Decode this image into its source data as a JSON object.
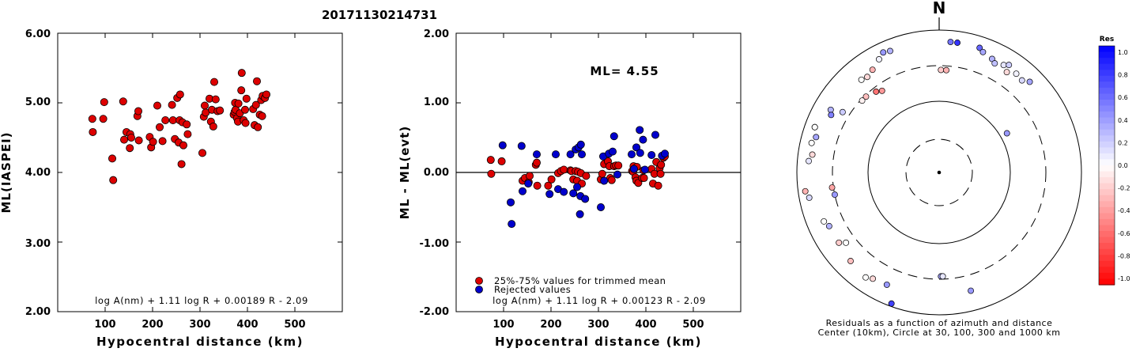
{
  "title": "20171130214731",
  "chart_data": [
    {
      "type": "scatter",
      "title": "",
      "xlabel": "Hypocentral distance (km)",
      "ylabel": "ML(IASPEI)",
      "xlim": [
        0,
        600
      ],
      "ylim": [
        2.0,
        6.0
      ],
      "xticks": [
        "100",
        "200",
        "300",
        "400",
        "500"
      ],
      "yticks": [
        "2.00",
        "3.00",
        "4.00",
        "5.00",
        "6.00"
      ],
      "formula": "log A(nm) + 1.11 log R + 0.00189 R - 2.09",
      "marker_color": "#dd0000",
      "points": [
        [
          73,
          4.77
        ],
        [
          74,
          4.58
        ],
        [
          96,
          4.77
        ],
        [
          98,
          5.01
        ],
        [
          115,
          4.2
        ],
        [
          117,
          3.89
        ],
        [
          138,
          5.02
        ],
        [
          140,
          4.47
        ],
        [
          145,
          4.58
        ],
        [
          152,
          4.35
        ],
        [
          153,
          4.55
        ],
        [
          155,
          4.5
        ],
        [
          168,
          4.81
        ],
        [
          170,
          4.88
        ],
        [
          171,
          4.46
        ],
        [
          194,
          4.51
        ],
        [
          197,
          4.36
        ],
        [
          201,
          4.44
        ],
        [
          210,
          4.96
        ],
        [
          215,
          4.65
        ],
        [
          221,
          4.45
        ],
        [
          227,
          4.75
        ],
        [
          241,
          4.97
        ],
        [
          243,
          4.75
        ],
        [
          247,
          4.48
        ],
        [
          252,
          5.07
        ],
        [
          255,
          4.43
        ],
        [
          257,
          4.75
        ],
        [
          258,
          5.12
        ],
        [
          261,
          4.12
        ],
        [
          263,
          4.72
        ],
        [
          265,
          4.39
        ],
        [
          272,
          4.69
        ],
        [
          274,
          4.55
        ],
        [
          305,
          4.28
        ],
        [
          308,
          4.8
        ],
        [
          310,
          4.96
        ],
        [
          312,
          4.86
        ],
        [
          320,
          5.06
        ],
        [
          323,
          4.73
        ],
        [
          325,
          4.9
        ],
        [
          328,
          4.66
        ],
        [
          330,
          5.3
        ],
        [
          333,
          5.05
        ],
        [
          337,
          4.88
        ],
        [
          342,
          4.89
        ],
        [
          371,
          4.83
        ],
        [
          373,
          4.87
        ],
        [
          374,
          5.0
        ],
        [
          375,
          4.9
        ],
        [
          378,
          4.78
        ],
        [
          380,
          4.73
        ],
        [
          381,
          4.99
        ],
        [
          384,
          4.85
        ],
        [
          387,
          5.18
        ],
        [
          388,
          5.43
        ],
        [
          392,
          4.75
        ],
        [
          395,
          4.9
        ],
        [
          396,
          4.71
        ],
        [
          398,
          5.06
        ],
        [
          412,
          4.91
        ],
        [
          415,
          4.68
        ],
        [
          418,
          4.97
        ],
        [
          420,
          5.31
        ],
        [
          422,
          4.65
        ],
        [
          426,
          4.83
        ],
        [
          429,
          5.04
        ],
        [
          431,
          4.81
        ],
        [
          432,
          5.1
        ],
        [
          437,
          5.07
        ],
        [
          440,
          5.12
        ]
      ]
    },
    {
      "type": "scatter",
      "title": "",
      "xlabel": "Hypocentral distance (km)",
      "ylabel": "ML - ML(evt)",
      "xlim": [
        0,
        600
      ],
      "ylim": [
        -2.0,
        2.0
      ],
      "xticks": [
        "100",
        "200",
        "300",
        "400",
        "500"
      ],
      "yticks": [
        "-2.00",
        "-1.00",
        "0.00",
        "1.00",
        "2.00"
      ],
      "annotation": "ML= 4.55",
      "legend": [
        "25%-75% values for trimmed mean",
        "Rejected values"
      ],
      "legend_colors": [
        "#dd0000",
        "#0000cc"
      ],
      "formula": "log A(nm) + 1.11 log R + 0.00123 R - 2.09",
      "series": [
        {
          "name": "25%-75% values for trimmed mean",
          "color": "#dd0000",
          "points": [
            [
              73,
              0.18
            ],
            [
              74,
              -0.02
            ],
            [
              96,
              0.16
            ],
            [
              140,
              -0.12
            ],
            [
              145,
              -0.08
            ],
            [
              153,
              -0.14
            ],
            [
              155,
              -0.05
            ],
            [
              168,
              0.11
            ],
            [
              170,
              0.14
            ],
            [
              171,
              -0.19
            ],
            [
              194,
              -0.19
            ],
            [
              201,
              -0.1
            ],
            [
              215,
              -0.01
            ],
            [
              221,
              0.02
            ],
            [
              227,
              0.04
            ],
            [
              241,
              0.03
            ],
            [
              243,
              0.02
            ],
            [
              247,
              -0.1
            ],
            [
              252,
              0.02
            ],
            [
              255,
              -0.12
            ],
            [
              257,
              0.01
            ],
            [
              263,
              -0.01
            ],
            [
              265,
              -0.16
            ],
            [
              274,
              -0.05
            ],
            [
              305,
              -0.1
            ],
            [
              308,
              -0.02
            ],
            [
              312,
              0.12
            ],
            [
              320,
              0.16
            ],
            [
              323,
              0.09
            ],
            [
              325,
              -0.08
            ],
            [
              328,
              -0.11
            ],
            [
              333,
              0.09
            ],
            [
              337,
              0.1
            ],
            [
              342,
              0.1
            ],
            [
              371,
              0.02
            ],
            [
              373,
              0.01
            ],
            [
              374,
              0.09
            ],
            [
              375,
              0.05
            ],
            [
              378,
              -0.07
            ],
            [
              380,
              -0.12
            ],
            [
              381,
              0.08
            ],
            [
              384,
              -0.15
            ],
            [
              392,
              -0.08
            ],
            [
              395,
              0.03
            ],
            [
              396,
              -0.08
            ],
            [
              412,
              0.05
            ],
            [
              415,
              -0.16
            ],
            [
              418,
              -0.02
            ],
            [
              422,
              0.15
            ],
            [
              426,
              -0.19
            ],
            [
              429,
              0.06
            ],
            [
              431,
              -0.02
            ],
            [
              432,
              0.11
            ],
            [
              437,
              0.21
            ],
            [
              440,
              0.23
            ]
          ]
        },
        {
          "name": "Rejected values",
          "color": "#0000cc",
          "points": [
            [
              98,
              0.39
            ],
            [
              115,
              -0.43
            ],
            [
              117,
              -0.74
            ],
            [
              138,
              0.38
            ],
            [
              140,
              -0.27
            ],
            [
              152,
              -0.16
            ],
            [
              170,
              0.26
            ],
            [
              197,
              -0.31
            ],
            [
              210,
              0.26
            ],
            [
              215,
              -0.24
            ],
            [
              227,
              -0.28
            ],
            [
              241,
              0.26
            ],
            [
              247,
              -0.3
            ],
            [
              252,
              0.33
            ],
            [
              255,
              -0.21
            ],
            [
              258,
              0.36
            ],
            [
              261,
              -0.6
            ],
            [
              262,
              -0.34
            ],
            [
              263,
              0.4
            ],
            [
              265,
              0.26
            ],
            [
              272,
              -0.38
            ],
            [
              305,
              -0.5
            ],
            [
              310,
              0.23
            ],
            [
              312,
              -0.12
            ],
            [
              322,
              0.27
            ],
            [
              330,
              0.3
            ],
            [
              333,
              0.52
            ],
            [
              340,
              -0.03
            ],
            [
              370,
              0.26
            ],
            [
              375,
              0.05
            ],
            [
              380,
              0.36
            ],
            [
              387,
              0.61
            ],
            [
              388,
              0.28
            ],
            [
              394,
              0.47
            ],
            [
              398,
              0.04
            ],
            [
              412,
              0.25
            ],
            [
              420,
              0.54
            ],
            [
              434,
              0.24
            ],
            [
              440,
              0.27
            ]
          ]
        }
      ]
    },
    {
      "type": "scatter",
      "title": "N",
      "subtype": "polar",
      "caption": [
        "Residuals as a function of azimuth and distance",
        "Center (10km), Circle at 30, 100, 300 and 1000 km"
      ],
      "colorbar": {
        "title": "Res",
        "ticks": [
          "1.0",
          "0.8",
          "0.6",
          "0.4",
          "0.2",
          "0.0",
          "-0.2",
          "-0.4",
          "-0.6",
          "-0.8",
          "-1.0"
        ]
      },
      "points": [
        {
          "az": 5,
          "r": 0.92,
          "res": 0.55
        },
        {
          "az": 8,
          "r": 0.92,
          "res": 0.8
        },
        {
          "az": 18,
          "r": 0.92,
          "res": 0.6
        },
        {
          "az": 20,
          "r": 0.9,
          "res": 0.35
        },
        {
          "az": 25,
          "r": 0.88,
          "res": 0.3
        },
        {
          "az": 27,
          "r": 0.86,
          "res": 0.25
        },
        {
          "az": 31,
          "r": 0.88,
          "res": 0.1
        },
        {
          "az": 34,
          "r": 0.85,
          "res": -0.15
        },
        {
          "az": 33,
          "r": 0.9,
          "res": 0.2
        },
        {
          "az": 38,
          "r": 0.88,
          "res": 0.05
        },
        {
          "az": 42,
          "r": 0.87,
          "res": 0.15
        },
        {
          "az": 45,
          "r": 0.9,
          "res": 0.35
        },
        {
          "az": 60,
          "r": 0.55,
          "res": 0.4
        },
        {
          "az": 1,
          "r": 0.72,
          "res": -0.2
        },
        {
          "az": 4,
          "r": 0.72,
          "res": -0.3
        },
        {
          "az": 335,
          "r": 0.93,
          "res": 0.4
        },
        {
          "az": 338,
          "r": 0.92,
          "res": 0.3
        },
        {
          "az": 332,
          "r": 0.9,
          "res": 0.05
        },
        {
          "az": 327,
          "r": 0.86,
          "res": -0.3
        },
        {
          "az": 323,
          "r": 0.84,
          "res": -0.15
        },
        {
          "az": 320,
          "r": 0.85,
          "res": 0.0
        },
        {
          "az": 316,
          "r": 0.74,
          "res": -0.25
        },
        {
          "az": 313,
          "r": 0.74,
          "res": -0.05
        },
        {
          "az": 322,
          "r": 0.72,
          "res": -0.55
        },
        {
          "az": 325,
          "r": 0.7,
          "res": -0.4
        },
        {
          "az": 300,
          "r": 0.88,
          "res": 0.3
        },
        {
          "az": 298,
          "r": 0.86,
          "res": 0.5
        },
        {
          "az": 302,
          "r": 0.8,
          "res": 0.2
        },
        {
          "az": 290,
          "r": 0.93,
          "res": 0.25
        },
        {
          "az": 286,
          "r": 0.9,
          "res": 0.35
        },
        {
          "az": 290,
          "r": 0.93,
          "res": 0.0
        },
        {
          "az": 283,
          "r": 0.92,
          "res": 0.0
        },
        {
          "az": 278,
          "r": 0.9,
          "res": -0.15
        },
        {
          "az": 275,
          "r": 0.92,
          "res": 0.1
        },
        {
          "az": 262,
          "r": 0.95,
          "res": -0.3
        },
        {
          "az": 259,
          "r": 0.93,
          "res": 0.15
        },
        {
          "az": 262,
          "r": 0.76,
          "res": -0.35
        },
        {
          "az": 258,
          "r": 0.75,
          "res": 0.4
        },
        {
          "az": 247,
          "r": 0.88,
          "res": 0.0
        },
        {
          "az": 244,
          "r": 0.86,
          "res": 0.3
        },
        {
          "az": 235,
          "r": 0.86,
          "res": -0.2
        },
        {
          "az": 233,
          "r": 0.82,
          "res": 0.0
        },
        {
          "az": 225,
          "r": 0.88,
          "res": -0.25
        },
        {
          "az": 215,
          "r": 0.9,
          "res": 0.0
        },
        {
          "az": 212,
          "r": 0.88,
          "res": -0.15
        },
        {
          "az": 205,
          "r": 0.87,
          "res": 0.4
        },
        {
          "az": 200,
          "r": 0.98,
          "res": 0.75
        },
        {
          "az": 165,
          "r": 0.86,
          "res": 0.4
        },
        {
          "az": 179,
          "r": 0.73,
          "res": 0.35
        },
        {
          "az": 178,
          "r": 0.73,
          "res": 0.1
        }
      ]
    }
  ]
}
